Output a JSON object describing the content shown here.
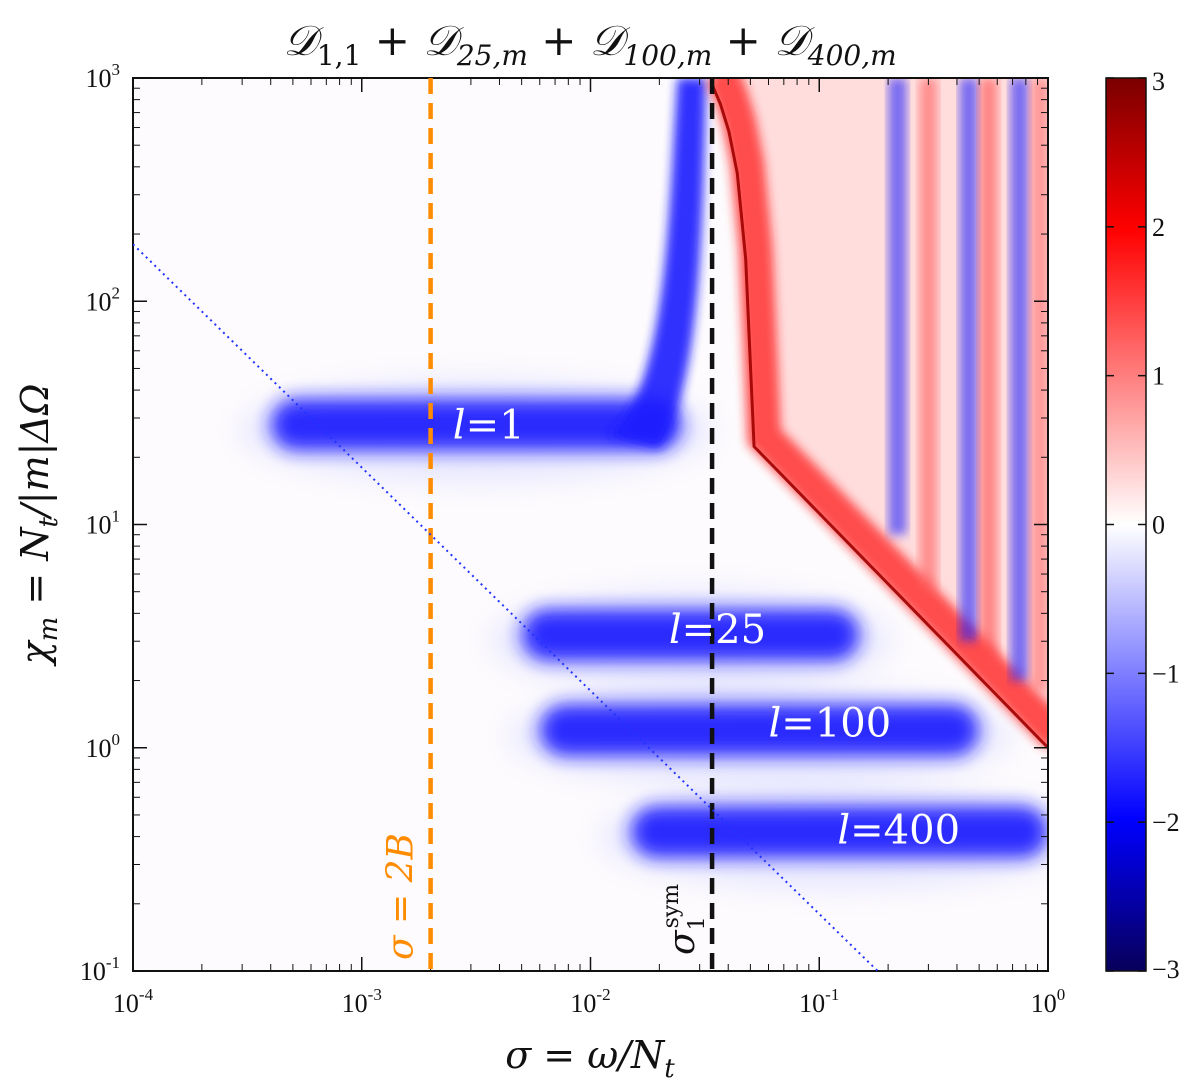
{
  "chart_data": {
    "type": "heatmap",
    "title": "𝒟1,1 + 𝒟25,m + 𝒟100,m + 𝒟400,m",
    "title_parts": {
      "D": "𝒟",
      "s1": "1,1",
      "s2": "25,m",
      "s3": "100,m",
      "s4": "400,m",
      "plus": "+"
    },
    "xlabel": "σ = ω/N",
    "xlabel_sub": "t",
    "ylabel": "χ",
    "ylabel_sub": "m",
    "ylabel_rest": " = N",
    "ylabel_rest_sub": "t",
    "ylabel_tail": "/|m|ΔΩ",
    "x_scale": "log",
    "y_scale": "log",
    "xlim": [
      0.0001,
      1
    ],
    "ylim": [
      0.1,
      1000
    ],
    "x_ticks": [
      {
        "value": 0.0001,
        "base": "10",
        "exp": "-4"
      },
      {
        "value": 0.001,
        "base": "10",
        "exp": "-3"
      },
      {
        "value": 0.01,
        "base": "10",
        "exp": "-2"
      },
      {
        "value": 0.1,
        "base": "10",
        "exp": "-1"
      },
      {
        "value": 1,
        "base": "10",
        "exp": "0"
      }
    ],
    "y_ticks": [
      {
        "value": 0.1,
        "base": "10",
        "exp": "-1"
      },
      {
        "value": 1,
        "base": "10",
        "exp": "0"
      },
      {
        "value": 10,
        "base": "10",
        "exp": "1"
      },
      {
        "value": 100,
        "base": "10",
        "exp": "2"
      },
      {
        "value": 1000,
        "base": "10",
        "exp": "3"
      }
    ],
    "colorbar": {
      "min": -3,
      "max": 3,
      "ticks": [
        "3",
        "2",
        "1",
        "0",
        "−1",
        "−2",
        "−3"
      ],
      "tick_values": [
        3,
        2,
        1,
        0,
        -1,
        -2,
        -3
      ],
      "colors": [
        "#08005a",
        "#0000ff",
        "#ffffff",
        "#ff0000",
        "#7a0000"
      ]
    },
    "bands": [
      {
        "label": "l = 1",
        "text_l": "l",
        "text_n": "1",
        "label_x": 0.0025,
        "label_y": 28,
        "chi": 28,
        "sigma_start": 0.0004,
        "sigma_end": 0.025,
        "color": "#0000ff"
      },
      {
        "label": "l = 25",
        "text_l": "l",
        "text_n": "25",
        "label_x": 0.022,
        "label_y": 3.4,
        "chi": 3.2,
        "sigma_start": 0.005,
        "sigma_end": 0.15,
        "color": "#0000ff"
      },
      {
        "label": "l = 100",
        "text_l": "l",
        "text_n": "100",
        "label_x": 0.06,
        "label_y": 1.3,
        "chi": 1.2,
        "sigma_start": 0.006,
        "sigma_end": 0.5,
        "color": "#0000ff"
      },
      {
        "label": "l = 400",
        "text_l": "l",
        "text_n": "400",
        "label_x": 0.12,
        "label_y": 0.43,
        "chi": 0.42,
        "sigma_start": 0.015,
        "sigma_end": 1.0,
        "color": "#0000ff"
      }
    ],
    "lines": [
      {
        "name": "σ = 2B",
        "text": "σ = 2B",
        "x": 0.002,
        "style": "dashed",
        "color": "#ff8c00"
      },
      {
        "name": "σ1sym",
        "text_main": "σ",
        "text_sub": "1",
        "text_sup": "sym",
        "x": 0.034,
        "style": "dashed",
        "color": "#111111"
      },
      {
        "name": "dotted-diagonal",
        "style": "dotted",
        "color": "#2233ff",
        "x_start": 0.0001,
        "y_start": 180,
        "x_end": 0.18,
        "y_end": 0.1
      }
    ]
  }
}
